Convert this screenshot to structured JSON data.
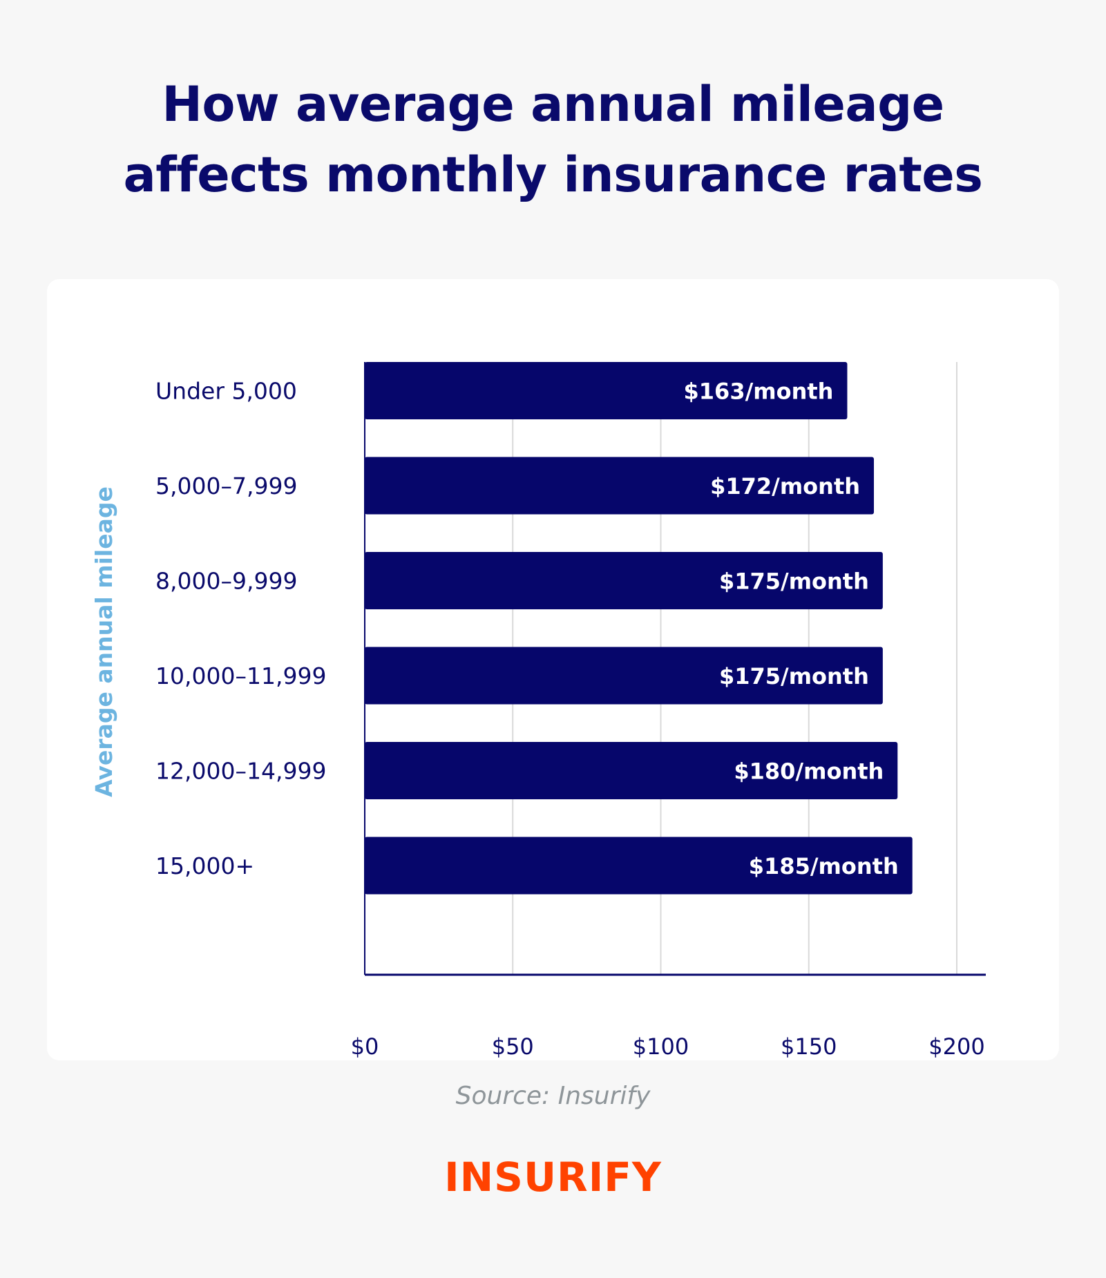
{
  "chart_data": {
    "type": "bar",
    "orientation": "horizontal",
    "title": "How average annual mileage affects monthly insurance rates",
    "title_lines": [
      "How average annual mileage",
      "affects monthly insurance rates"
    ],
    "ylabel": "Average annual mileage",
    "xlabel": "",
    "categories": [
      "Under 5,000",
      "5,000–7,999",
      "8,000–9,999",
      "10,000–11,999",
      "12,000–14,999",
      "15,000+"
    ],
    "values": [
      163,
      172,
      175,
      175,
      180,
      185
    ],
    "data_labels": [
      "$163/month",
      "$172/month",
      "$175/month",
      "$175/month",
      "$180/month",
      "$185/month"
    ],
    "xlim": [
      0,
      210
    ],
    "x_ticks": [
      0,
      50,
      100,
      150,
      200
    ],
    "x_tick_labels": [
      "$0",
      "$50",
      "$100",
      "$150",
      "$200"
    ],
    "grid": "vertical",
    "colors": {
      "bar": "#06066b",
      "axis_label": "#6cb4e0",
      "text": "#0a0a6b",
      "grid": "#d9d9d9"
    }
  },
  "footer": {
    "source": "Source: Insurify",
    "logo": "INSURIFY"
  },
  "colors": {
    "brand": "#ff4200",
    "background": "#f7f7f7",
    "card": "#ffffff"
  }
}
